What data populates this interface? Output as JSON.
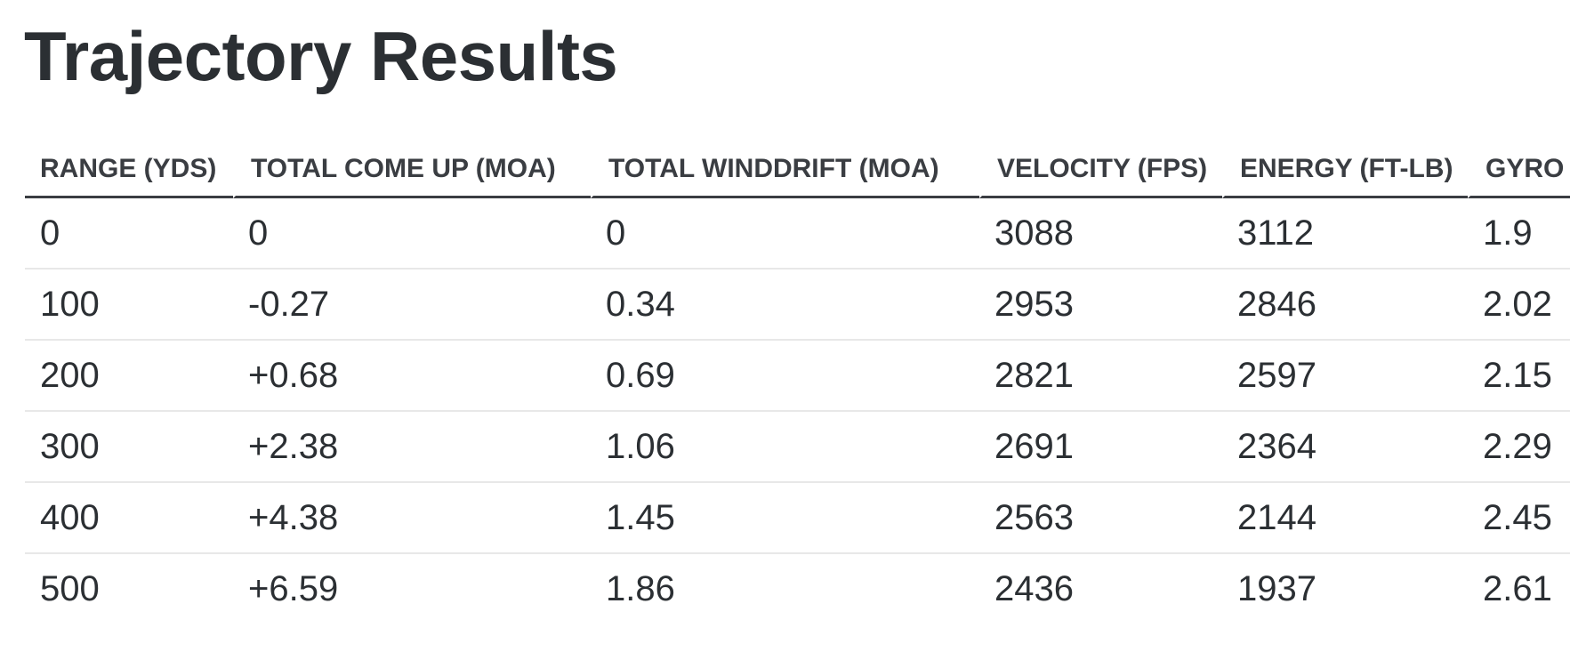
{
  "header": {
    "title": "Trajectory Results"
  },
  "table": {
    "columns": [
      "RANGE (YDS)",
      "TOTAL COME UP (MOA)",
      "TOTAL WINDDRIFT (MOA)",
      "VELOCITY (FPS)",
      "ENERGY (FT-LB)",
      "GYRO"
    ],
    "rows": [
      [
        "0",
        "0",
        "0",
        "3088",
        "3112",
        "1.9"
      ],
      [
        "100",
        "-0.27",
        "0.34",
        "2953",
        "2846",
        "2.02"
      ],
      [
        "200",
        "+0.68",
        "0.69",
        "2821",
        "2597",
        "2.15"
      ],
      [
        "300",
        "+2.38",
        "1.06",
        "2691",
        "2364",
        "2.29"
      ],
      [
        "400",
        "+4.38",
        "1.45",
        "2563",
        "2144",
        "2.45"
      ],
      [
        "500",
        "+6.59",
        "1.86",
        "2436",
        "1937",
        "2.61"
      ]
    ]
  }
}
